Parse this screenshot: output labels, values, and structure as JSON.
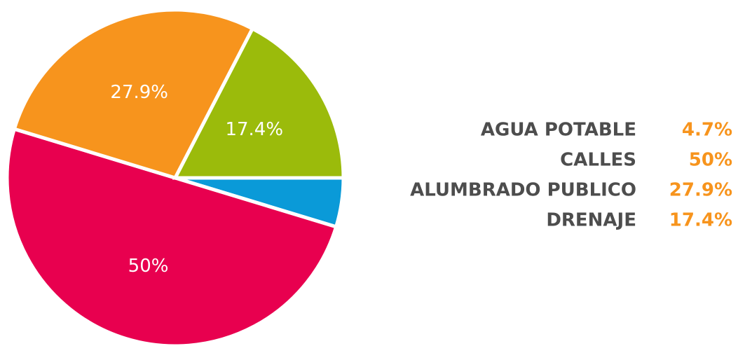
{
  "chart_data": {
    "type": "pie",
    "categories": [
      "AGUA POTABLE",
      "CALLES",
      "ALUMBRADO PUBLICO",
      "DRENAJE"
    ],
    "values": [
      4.7,
      50,
      27.9,
      17.4
    ],
    "value_labels": [
      "4.7%",
      "50%",
      "27.9%",
      "17.4%"
    ],
    "colors": [
      "#0a9ad8",
      "#e8004f",
      "#f7941d",
      "#9bbb0b"
    ]
  }
}
